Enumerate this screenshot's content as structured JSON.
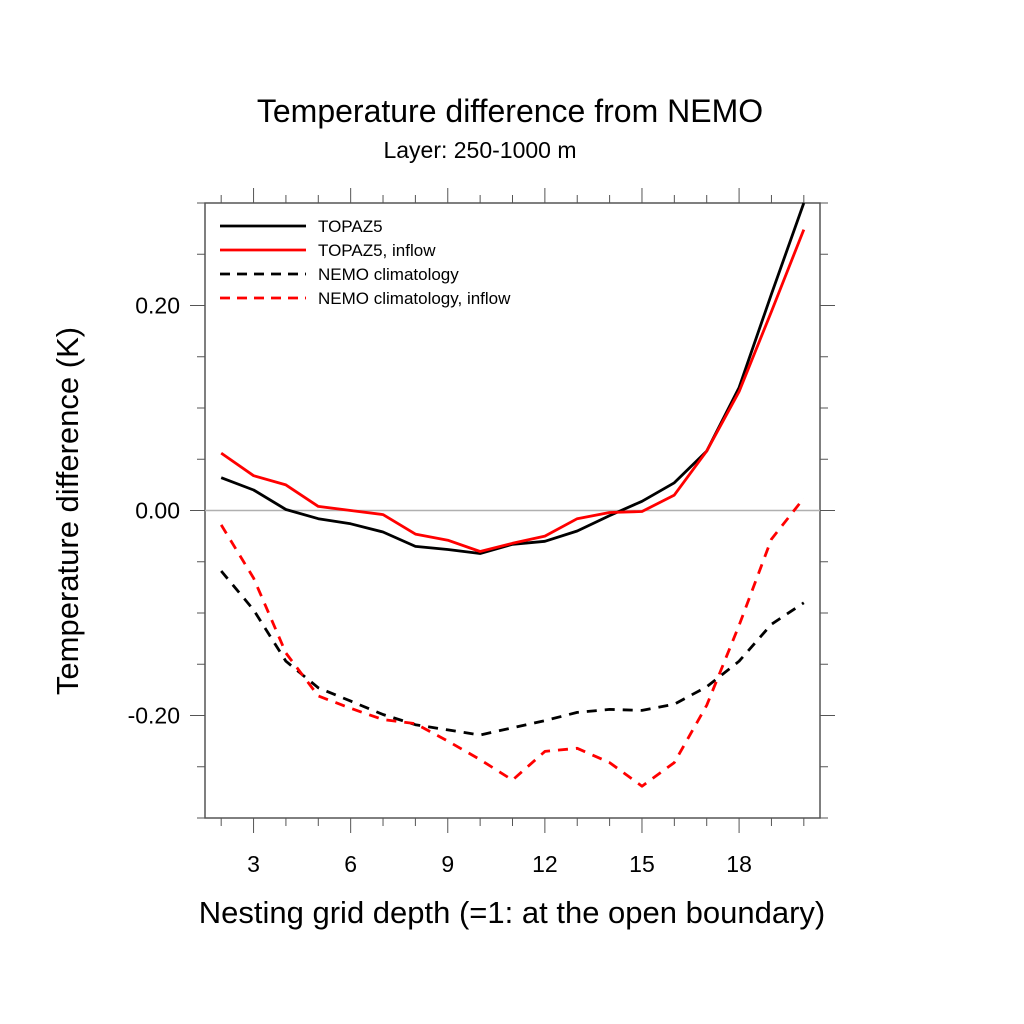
{
  "chart_data": {
    "type": "line",
    "title": "Temperature difference from NEMO",
    "subtitle": "Layer: 250-1000 m",
    "xlabel": "Nesting grid depth (=1: at the open boundary)",
    "ylabel": "Temperature difference (K)",
    "xlim": [
      1.5,
      20.5
    ],
    "ylim": [
      -0.3,
      0.3
    ],
    "x_ticks": [
      3,
      6,
      9,
      12,
      15,
      18
    ],
    "x_tick_labels": [
      "3",
      "6",
      "9",
      "12",
      "15",
      "18"
    ],
    "x_minor_step": 1,
    "y_ticks": [
      -0.2,
      0.0,
      0.2
    ],
    "y_tick_labels": [
      "-0.20",
      "0.00",
      "0.20"
    ],
    "y_minor_step": 0.05,
    "reference_line": 0.0,
    "grid": false,
    "legend_position": "top-left",
    "x": [
      2,
      3,
      4,
      5,
      6,
      7,
      8,
      9,
      10,
      11,
      12,
      13,
      14,
      15,
      16,
      17,
      18,
      19,
      20
    ],
    "series": [
      {
        "name": "TOPAZ5",
        "color": "#000000",
        "style": "solid",
        "values": [
          0.032,
          0.02,
          0.001,
          -0.008,
          -0.013,
          -0.021,
          -0.035,
          -0.038,
          -0.042,
          -0.033,
          -0.03,
          -0.02,
          -0.005,
          0.009,
          0.027,
          0.058,
          0.12,
          0.211,
          0.3
        ]
      },
      {
        "name": "TOPAZ5, inflow",
        "color": "#ff0000",
        "style": "solid",
        "values": [
          0.056,
          0.034,
          0.025,
          0.004,
          0.0,
          -0.004,
          -0.023,
          -0.029,
          -0.04,
          -0.032,
          -0.025,
          -0.008,
          -0.002,
          -0.001,
          0.015,
          0.058,
          0.116,
          0.194,
          0.274
        ]
      },
      {
        "name": "NEMO climatology",
        "color": "#000000",
        "style": "dashed",
        "values": [
          -0.059,
          -0.097,
          -0.147,
          -0.173,
          -0.186,
          -0.199,
          -0.209,
          -0.214,
          -0.219,
          -0.212,
          -0.205,
          -0.197,
          -0.194,
          -0.195,
          -0.189,
          -0.172,
          -0.147,
          -0.111,
          -0.09
        ]
      },
      {
        "name": "NEMO climatology, inflow",
        "color": "#ff0000",
        "style": "dashed",
        "values": [
          -0.014,
          -0.066,
          -0.139,
          -0.181,
          -0.193,
          -0.204,
          -0.208,
          -0.225,
          -0.243,
          -0.263,
          -0.235,
          -0.232,
          -0.246,
          -0.269,
          -0.246,
          -0.19,
          -0.112,
          -0.028,
          0.012
        ]
      }
    ]
  }
}
